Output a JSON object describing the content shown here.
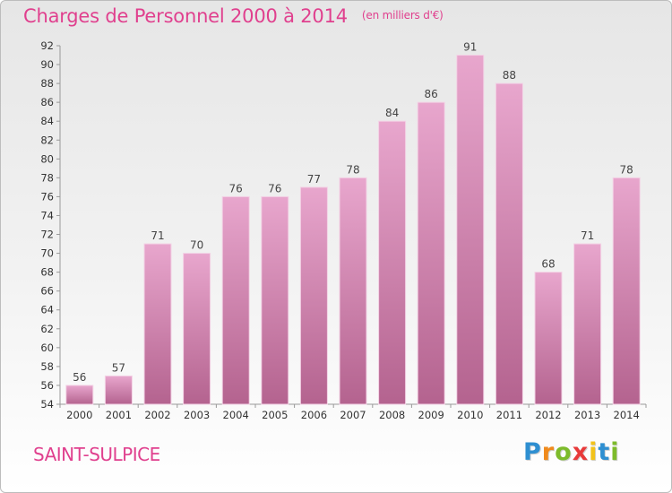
{
  "title": "Charges de Personnel 2000 à 2014",
  "subtitle": "(en milliers d'€)",
  "city": "SAINT-SULPICE",
  "logo": {
    "letters": [
      "P",
      "r",
      "o",
      "x",
      "i",
      "t",
      "i"
    ],
    "colors": [
      "#2e8fd1",
      "#f08a1c",
      "#7dbb2b",
      "#e83a3a",
      "#f2c21a",
      "#2e8fd1",
      "#7dbb2b"
    ]
  },
  "colors": {
    "bar_top": "#e8a6cd",
    "bar_bottom": "#b4638f",
    "title": "#e0408e"
  },
  "chart_data": {
    "type": "bar",
    "categories": [
      "2000",
      "2001",
      "2002",
      "2003",
      "2004",
      "2005",
      "2006",
      "2007",
      "2008",
      "2009",
      "2010",
      "2011",
      "2012",
      "2013",
      "2014"
    ],
    "values": [
      56,
      57,
      71,
      70,
      76,
      76,
      77,
      78,
      84,
      86,
      91,
      88,
      68,
      71,
      78
    ],
    "ylim": [
      54,
      92
    ],
    "yticks": [
      54,
      56,
      58,
      60,
      62,
      64,
      66,
      68,
      70,
      72,
      74,
      76,
      78,
      80,
      82,
      84,
      86,
      88,
      90,
      92
    ],
    "grid": false,
    "data_labels": true
  }
}
